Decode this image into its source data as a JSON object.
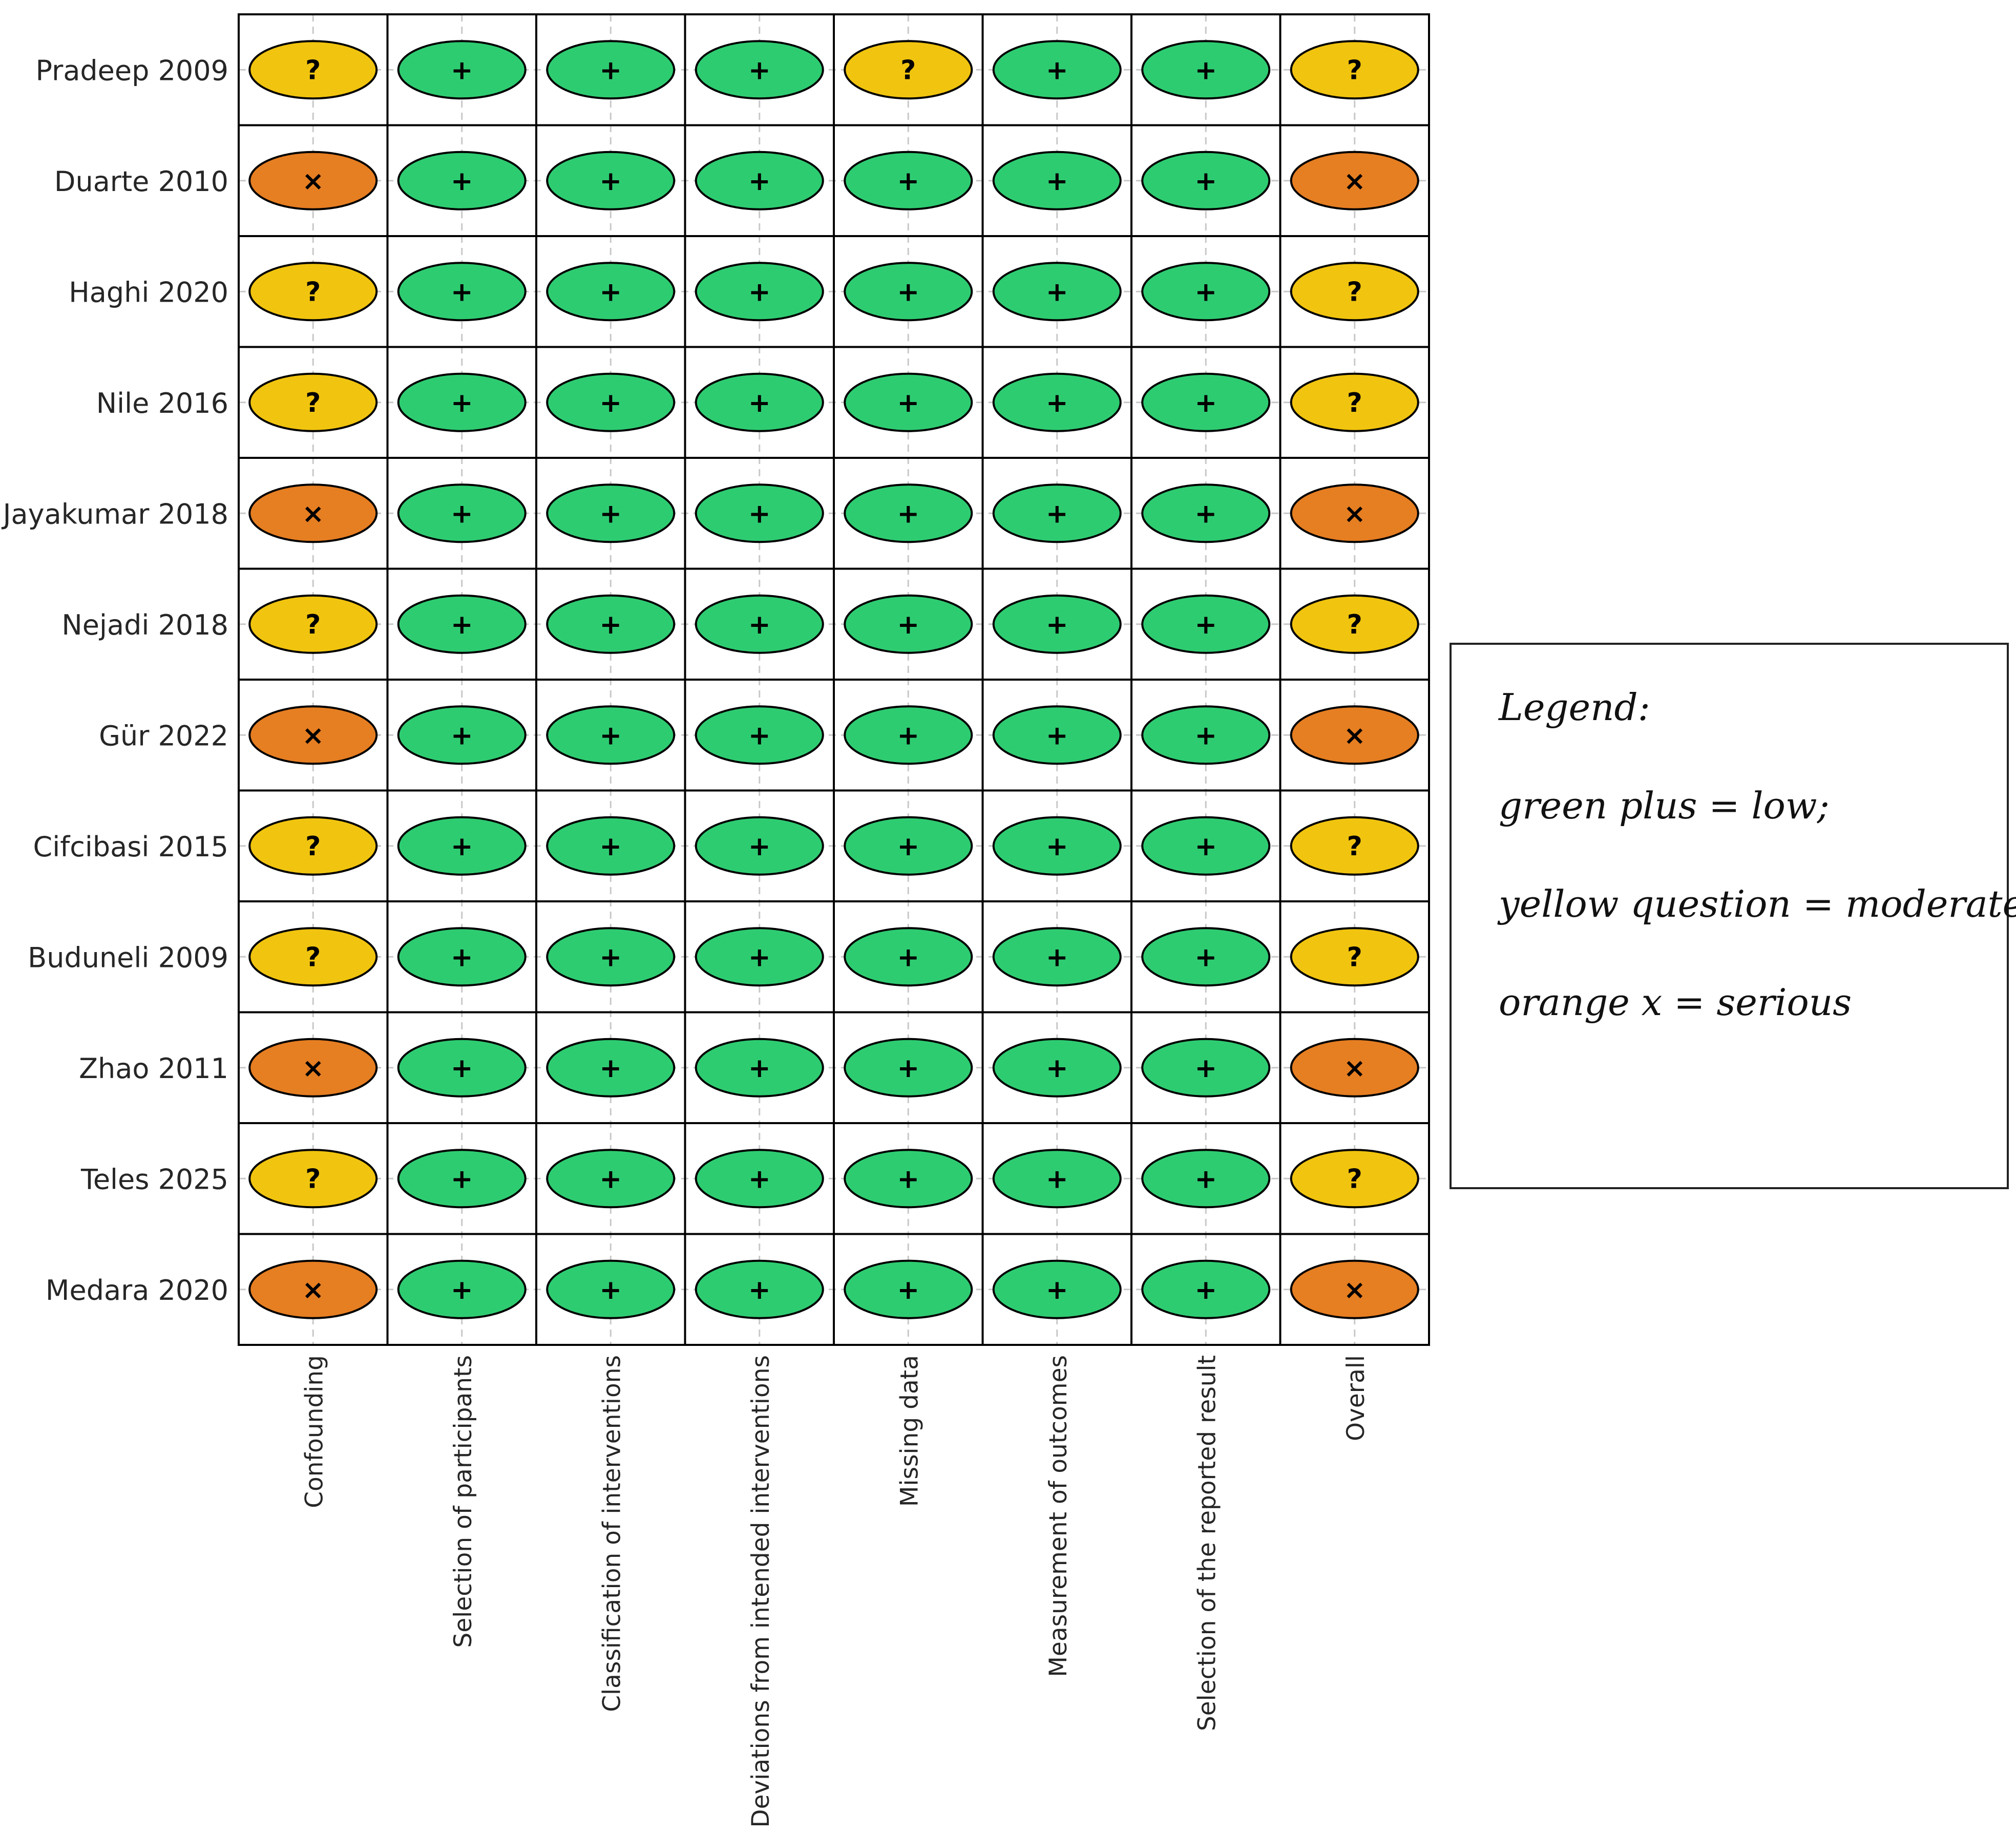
{
  "chart_data": {
    "type": "table",
    "title": "",
    "rows": [
      "Pradeep 2009",
      "Duarte 2010",
      "Haghi 2020",
      "Nile 2016",
      "Jayakumar 2018",
      "Nejadi 2018",
      "Gür 2022",
      "Cifcibasi 2015",
      "Buduneli 2009",
      "Zhao 2011",
      "Teles 2025",
      "Medara 2020"
    ],
    "columns": [
      "Confounding",
      "Selection of participants",
      "Classification of interventions",
      "Deviations from intended interventions",
      "Missing data",
      "Measurement of outcomes",
      "Selection of the reported result",
      "Overall"
    ],
    "judgements": [
      [
        "moderate",
        "low",
        "low",
        "low",
        "moderate",
        "low",
        "low",
        "moderate"
      ],
      [
        "serious",
        "low",
        "low",
        "low",
        "low",
        "low",
        "low",
        "serious"
      ],
      [
        "moderate",
        "low",
        "low",
        "low",
        "low",
        "low",
        "low",
        "moderate"
      ],
      [
        "moderate",
        "low",
        "low",
        "low",
        "low",
        "low",
        "low",
        "moderate"
      ],
      [
        "serious",
        "low",
        "low",
        "low",
        "low",
        "low",
        "low",
        "serious"
      ],
      [
        "moderate",
        "low",
        "low",
        "low",
        "low",
        "low",
        "low",
        "moderate"
      ],
      [
        "serious",
        "low",
        "low",
        "low",
        "low",
        "low",
        "low",
        "serious"
      ],
      [
        "moderate",
        "low",
        "low",
        "low",
        "low",
        "low",
        "low",
        "moderate"
      ],
      [
        "moderate",
        "low",
        "low",
        "low",
        "low",
        "low",
        "low",
        "moderate"
      ],
      [
        "serious",
        "low",
        "low",
        "low",
        "low",
        "low",
        "low",
        "serious"
      ],
      [
        "moderate",
        "low",
        "low",
        "low",
        "low",
        "low",
        "low",
        "moderate"
      ],
      [
        "serious",
        "low",
        "low",
        "low",
        "low",
        "low",
        "low",
        "serious"
      ]
    ],
    "levels": {
      "low": {
        "symbol": "+",
        "color": "#2ecc71"
      },
      "moderate": {
        "symbol": "?",
        "color": "#f1c40f"
      },
      "serious": {
        "symbol": "×",
        "color": "#e67e22"
      }
    },
    "legend": {
      "title": "Legend:",
      "entries": [
        "green plus = low;",
        "yellow question = moderate;",
        "orange x = serious"
      ]
    }
  }
}
